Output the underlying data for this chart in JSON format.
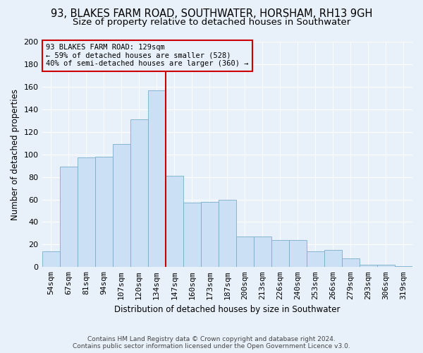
{
  "title1": "93, BLAKES FARM ROAD, SOUTHWATER, HORSHAM, RH13 9GH",
  "title2": "Size of property relative to detached houses in Southwater",
  "xlabel": "Distribution of detached houses by size in Southwater",
  "ylabel": "Number of detached properties",
  "bar_labels": [
    "54sqm",
    "67sqm",
    "81sqm",
    "94sqm",
    "107sqm",
    "120sqm",
    "134sqm",
    "147sqm",
    "160sqm",
    "173sqm",
    "187sqm",
    "200sqm",
    "213sqm",
    "226sqm",
    "240sqm",
    "253sqm",
    "266sqm",
    "279sqm",
    "293sqm",
    "306sqm",
    "319sqm"
  ],
  "bar_values": [
    14,
    89,
    97,
    98,
    109,
    131,
    157,
    81,
    57,
    58,
    60,
    27,
    27,
    24,
    24,
    14,
    15,
    8,
    2,
    2,
    1
  ],
  "bar_color": "#cce0f5",
  "bar_edge_color": "#7aadcc",
  "vline_color": "#cc0000",
  "vline_x_index": 6,
  "annotation_text1": "93 BLAKES FARM ROAD: 129sqm",
  "annotation_text2": "← 59% of detached houses are smaller (528)",
  "annotation_text3": "40% of semi-detached houses are larger (360) →",
  "annotation_box_color": "#cc0000",
  "footer1": "Contains HM Land Registry data © Crown copyright and database right 2024.",
  "footer2": "Contains public sector information licensed under the Open Government Licence v3.0.",
  "bg_color": "#e8f0fa",
  "ylim": [
    0,
    200
  ],
  "yticks": [
    0,
    20,
    40,
    60,
    80,
    100,
    120,
    140,
    160,
    180,
    200
  ],
  "title1_fontsize": 10.5,
  "title2_fontsize": 9.5,
  "xlabel_fontsize": 8.5,
  "ylabel_fontsize": 8.5,
  "tick_fontsize": 8,
  "annotation_fontsize": 7.5
}
